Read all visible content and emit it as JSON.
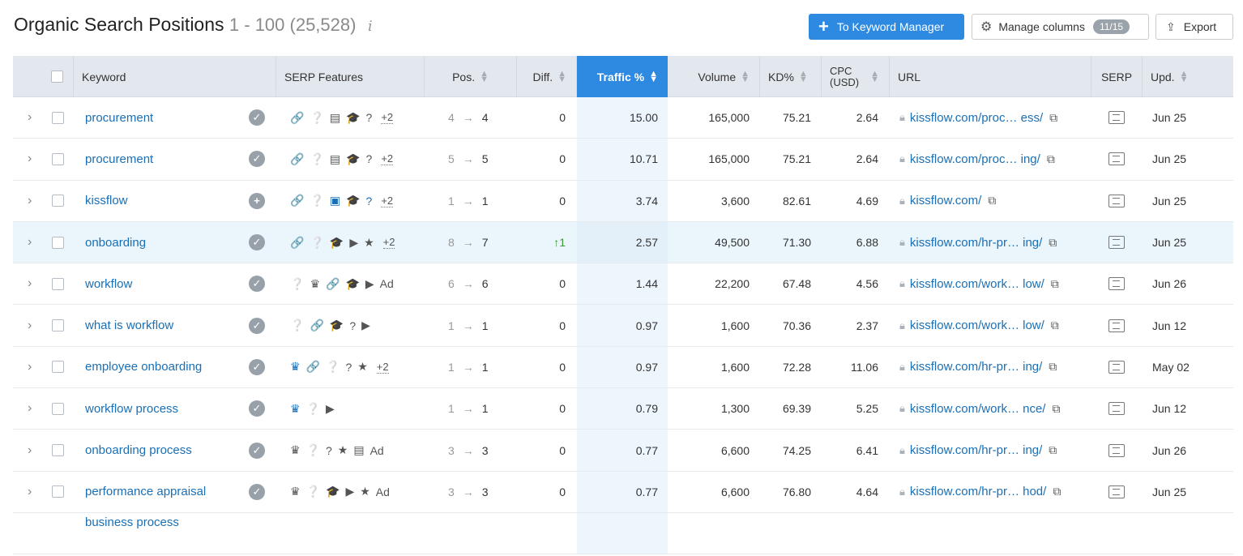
{
  "header": {
    "title": "Organic Search Positions",
    "range": "1 - 100 (25,528)",
    "info_icon": "i",
    "keyword_manager_label": "To Keyword Manager",
    "manage_columns_label": "Manage columns",
    "columns_badge": "11/15",
    "export_label": "Export"
  },
  "columns": {
    "keyword": "Keyword",
    "serp_features": "SERP Features",
    "pos": "Pos.",
    "diff": "Diff.",
    "traffic": "Traffic %",
    "volume": "Volume",
    "kd": "KD%",
    "cpc_line1": "CPC",
    "cpc_line2": "(USD)",
    "url": "URL",
    "serp": "SERP",
    "upd": "Upd."
  },
  "rows": [
    {
      "keyword": "procurement",
      "intent": "check",
      "features": [
        "🔗",
        "❔",
        "▤",
        "🎓",
        "?"
      ],
      "more": "+2",
      "prev": "4",
      "pos": "4",
      "diff": "0",
      "traffic": "15.00",
      "volume": "165,000",
      "kd": "75.21",
      "cpc": "2.64",
      "url": "kissflow.com/proc… ess/",
      "upd": "Jun 25"
    },
    {
      "keyword": "procurement",
      "intent": "check",
      "features": [
        "🔗",
        "❔",
        "▤",
        "🎓",
        "?"
      ],
      "more": "+2",
      "prev": "5",
      "pos": "5",
      "diff": "0",
      "traffic": "10.71",
      "volume": "165,000",
      "kd": "75.21",
      "cpc": "2.64",
      "url": "kissflow.com/proc… ing/",
      "upd": "Jun 25"
    },
    {
      "keyword": "kissflow",
      "intent": "plus",
      "features": [
        "🔗",
        "❔",
        "▣",
        "🎓",
        "?"
      ],
      "more": "+2",
      "prev": "1",
      "pos": "1",
      "diff": "0",
      "traffic": "3.74",
      "volume": "3,600",
      "kd": "82.61",
      "cpc": "4.69",
      "url": "kissflow.com/",
      "upd": "Jun 25"
    },
    {
      "keyword": "onboarding",
      "intent": "check",
      "features": [
        "🔗",
        "❔",
        "🎓",
        "▶",
        "★"
      ],
      "more": "+2",
      "prev": "8",
      "pos": "7",
      "diff": "↑1",
      "traffic": "2.57",
      "volume": "49,500",
      "kd": "71.30",
      "cpc": "6.88",
      "url": "kissflow.com/hr-pr… ing/",
      "upd": "Jun 25"
    },
    {
      "keyword": "workflow",
      "intent": "check",
      "features": [
        "❔",
        "♛",
        "🔗",
        "🎓",
        "▶",
        "Ad"
      ],
      "more": "",
      "prev": "6",
      "pos": "6",
      "diff": "0",
      "traffic": "1.44",
      "volume": "22,200",
      "kd": "67.48",
      "cpc": "4.56",
      "url": "kissflow.com/work… low/",
      "upd": "Jun 26"
    },
    {
      "keyword": "what is workflow",
      "intent": "check",
      "features": [
        "❔",
        "🔗",
        "🎓",
        "?",
        "▶"
      ],
      "more": "",
      "prev": "1",
      "pos": "1",
      "diff": "0",
      "traffic": "0.97",
      "volume": "1,600",
      "kd": "70.36",
      "cpc": "2.37",
      "url": "kissflow.com/work… low/",
      "upd": "Jun 12"
    },
    {
      "keyword": "employee onboarding",
      "intent": "check",
      "features": [
        "♛",
        "🔗",
        "❔",
        "?",
        "★"
      ],
      "more": "+2",
      "prev": "1",
      "pos": "1",
      "diff": "0",
      "traffic": "0.97",
      "volume": "1,600",
      "kd": "72.28",
      "cpc": "11.06",
      "url": "kissflow.com/hr-pr… ing/",
      "upd": "May 02"
    },
    {
      "keyword": "workflow process",
      "intent": "check",
      "features": [
        "♛",
        "❔",
        "▶"
      ],
      "more": "",
      "prev": "1",
      "pos": "1",
      "diff": "0",
      "traffic": "0.79",
      "volume": "1,300",
      "kd": "69.39",
      "cpc": "5.25",
      "url": "kissflow.com/work… nce/",
      "upd": "Jun 12"
    },
    {
      "keyword": "onboarding process",
      "intent": "check",
      "features": [
        "♛",
        "❔",
        "?",
        "★",
        "▤",
        "Ad"
      ],
      "more": "",
      "prev": "3",
      "pos": "3",
      "diff": "0",
      "traffic": "0.77",
      "volume": "6,600",
      "kd": "74.25",
      "cpc": "6.41",
      "url": "kissflow.com/hr-pr… ing/",
      "upd": "Jun 26"
    },
    {
      "keyword": "performance appraisal",
      "intent": "check",
      "features": [
        "♛",
        "❔",
        "🎓",
        "▶",
        "★",
        "Ad"
      ],
      "more": "",
      "prev": "3",
      "pos": "3",
      "diff": "0",
      "traffic": "0.77",
      "volume": "6,600",
      "kd": "76.80",
      "cpc": "4.64",
      "url": "kissflow.com/hr-pr… hod/",
      "upd": "Jun 25"
    },
    {
      "keyword": "business process",
      "intent": "check",
      "features": [],
      "more": "",
      "prev": "",
      "pos": "",
      "diff": "",
      "traffic": "",
      "volume": "",
      "kd": "",
      "cpc": "",
      "url": "",
      "upd": ""
    }
  ]
}
